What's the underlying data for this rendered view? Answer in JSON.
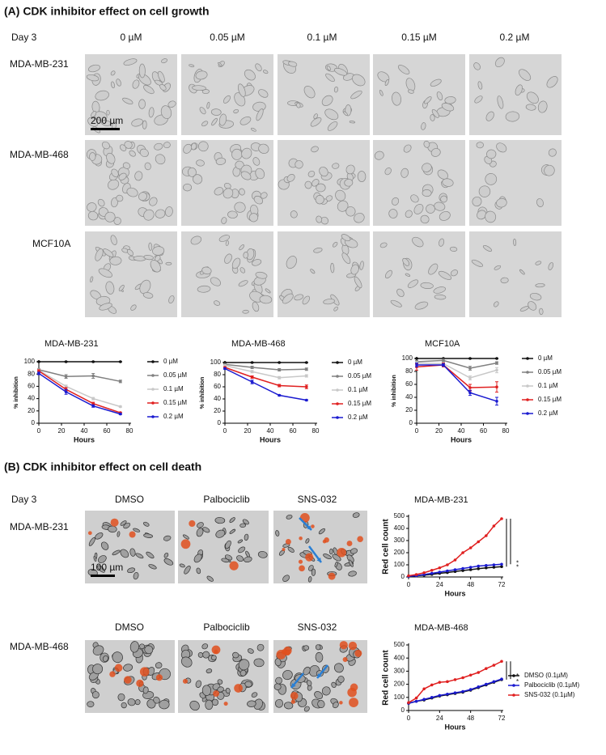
{
  "panel_a": {
    "title": "(A) CDK inhibitor effect on cell growth",
    "day": "Day 3",
    "concentrations": [
      "0 µM",
      "0.05 µM",
      "0.1 µM",
      "0.15 µM",
      "0.2 µM"
    ],
    "cell_lines": [
      "MDA-MB-231",
      "MDA-MB-468",
      "MCF10A"
    ],
    "scale_bar": "200 µm"
  },
  "panel_b": {
    "title": "(B) CDK inhibitor effect on cell death",
    "day": "Day 3",
    "rows": [
      {
        "cell_line": "MDA-MB-231",
        "treatments": [
          "DMSO",
          "Palbociclib",
          "SNS-032"
        ]
      },
      {
        "cell_line": "MDA-MB-468",
        "treatments": [
          "DMSO",
          "Palbociclib",
          "SNS-032"
        ]
      }
    ],
    "scale_bar": "100 µm"
  },
  "chart_data": [
    {
      "type": "line",
      "title": "MDA-MB-231",
      "x_label": "Hours",
      "y_label": "% inhibition",
      "x": [
        0,
        24,
        48,
        72
      ],
      "xlim": [
        0,
        80
      ],
      "xticks": [
        0,
        20,
        40,
        60,
        80
      ],
      "ylim": [
        0,
        100
      ],
      "yticks": [
        0,
        20,
        40,
        60,
        80,
        100
      ],
      "legend": true,
      "series": [
        {
          "name": "0 µM",
          "color": "#111111",
          "values": [
            100,
            100,
            100,
            100
          ],
          "errors": [
            0.5,
            0.5,
            0.5,
            0.5
          ]
        },
        {
          "name": "0.05 µM",
          "color": "#808080",
          "values": [
            87,
            76,
            77,
            68
          ],
          "errors": [
            2,
            3,
            4,
            2
          ]
        },
        {
          "name": "0.1 µM",
          "color": "#c8c8c8",
          "values": [
            86,
            60,
            40,
            27
          ],
          "errors": [
            2,
            2,
            2,
            1
          ]
        },
        {
          "name": "0.15 µM",
          "color": "#e02020",
          "values": [
            85,
            55,
            32,
            17
          ],
          "errors": [
            2,
            3,
            2,
            1
          ]
        },
        {
          "name": "0.2 µM",
          "color": "#1a1ad0",
          "values": [
            81,
            51,
            28,
            15
          ],
          "errors": [
            2,
            4,
            2,
            1
          ]
        }
      ]
    },
    {
      "type": "line",
      "title": "MDA-MB-468",
      "x_label": "Hours",
      "y_label": "% inhibition",
      "x": [
        0,
        24,
        48,
        72
      ],
      "xlim": [
        0,
        80
      ],
      "xticks": [
        0,
        20,
        40,
        60,
        80
      ],
      "ylim": [
        0,
        100
      ],
      "yticks": [
        0,
        20,
        40,
        60,
        80,
        100
      ],
      "legend": true,
      "series": [
        {
          "name": "0 µM",
          "color": "#111111",
          "values": [
            100,
            100,
            100,
            100
          ],
          "errors": [
            0.5,
            0.5,
            0.5,
            0.5
          ]
        },
        {
          "name": "0.05 µM",
          "color": "#808080",
          "values": [
            97,
            92,
            88,
            89
          ],
          "errors": [
            1,
            2,
            2,
            2
          ]
        },
        {
          "name": "0.1 µM",
          "color": "#c8c8c8",
          "values": [
            95,
            85,
            75,
            78
          ],
          "errors": [
            1,
            2,
            2,
            2
          ]
        },
        {
          "name": "0.15 µM",
          "color": "#e02020",
          "values": [
            92,
            76,
            62,
            60
          ],
          "errors": [
            1,
            2,
            2,
            3
          ]
        },
        {
          "name": "0.2 µM",
          "color": "#1a1ad0",
          "values": [
            90,
            68,
            46,
            38
          ],
          "errors": [
            1,
            3,
            1,
            1
          ]
        }
      ]
    },
    {
      "type": "line",
      "title": "MCF10A",
      "x_label": "Hours",
      "y_label": "% inhibition",
      "x": [
        0,
        24,
        48,
        72
      ],
      "xlim": [
        0,
        80
      ],
      "xticks": [
        0,
        20,
        40,
        60,
        80
      ],
      "ylim": [
        0,
        100
      ],
      "yticks": [
        0,
        20,
        40,
        60,
        80,
        100
      ],
      "legend": true,
      "series": [
        {
          "name": "0 µM",
          "color": "#111111",
          "values": [
            100,
            100,
            100,
            100
          ],
          "errors": [
            0.5,
            0.5,
            0.5,
            0.5
          ]
        },
        {
          "name": "0.05 µM",
          "color": "#808080",
          "values": [
            95,
            97,
            85,
            93
          ],
          "errors": [
            2,
            2,
            3,
            2
          ]
        },
        {
          "name": "0.1 µM",
          "color": "#c8c8c8",
          "values": [
            93,
            92,
            70,
            82
          ],
          "errors": [
            2,
            2,
            3,
            4
          ]
        },
        {
          "name": "0.15 µM",
          "color": "#e02020",
          "values": [
            87,
            90,
            55,
            56
          ],
          "errors": [
            5,
            3,
            5,
            8
          ]
        },
        {
          "name": "0.2 µM",
          "color": "#1a1ad0",
          "values": [
            90,
            90,
            47,
            34
          ],
          "errors": [
            3,
            2,
            4,
            6
          ]
        }
      ]
    },
    {
      "type": "line",
      "title": "MDA-MB-231",
      "x_label": "Hours",
      "y_label": "Red cell count",
      "x": [
        0,
        6,
        12,
        18,
        24,
        30,
        36,
        42,
        48,
        54,
        60,
        66,
        72
      ],
      "xlim": [
        0,
        72
      ],
      "xticks": [
        0,
        24,
        48,
        72
      ],
      "ylim": [
        0,
        500
      ],
      "yticks": [
        0,
        100,
        200,
        300,
        400,
        500
      ],
      "legend": false,
      "annotations": [
        "*",
        "*"
      ],
      "series": [
        {
          "color": "#111111",
          "values": [
            5,
            10,
            15,
            22,
            30,
            37,
            45,
            53,
            60,
            68,
            75,
            80,
            85
          ]
        },
        {
          "color": "#1a1ad0",
          "values": [
            5,
            10,
            20,
            30,
            40,
            50,
            60,
            70,
            80,
            90,
            95,
            100,
            105
          ]
        },
        {
          "color": "#e02020",
          "values": [
            10,
            20,
            35,
            55,
            75,
            100,
            140,
            200,
            240,
            290,
            340,
            420,
            480
          ]
        }
      ]
    },
    {
      "type": "line",
      "title": "MDA-MB-468",
      "x_label": "Hours",
      "y_label": "Red cell count",
      "x": [
        0,
        6,
        12,
        18,
        24,
        30,
        36,
        42,
        48,
        54,
        60,
        66,
        72
      ],
      "xlim": [
        0,
        72
      ],
      "xticks": [
        0,
        24,
        48,
        72
      ],
      "ylim": [
        0,
        500
      ],
      "yticks": [
        0,
        100,
        200,
        300,
        400,
        500
      ],
      "legend": true,
      "annotations": [
        "*",
        "*"
      ],
      "series": [
        {
          "name": "DMSO (0.1µM)",
          "color": "#111111",
          "values": [
            55,
            70,
            80,
            95,
            110,
            120,
            130,
            140,
            155,
            175,
            195,
            215,
            235
          ]
        },
        {
          "name": "Palbociclib (0.1µM)",
          "color": "#1a1ad0",
          "values": [
            55,
            70,
            85,
            100,
            115,
            125,
            135,
            145,
            160,
            180,
            200,
            220,
            240
          ]
        },
        {
          "name": "SNS-032 (0.1µM)",
          "color": "#e02020",
          "values": [
            60,
            95,
            165,
            195,
            215,
            220,
            235,
            250,
            270,
            290,
            320,
            345,
            375
          ]
        }
      ]
    }
  ]
}
